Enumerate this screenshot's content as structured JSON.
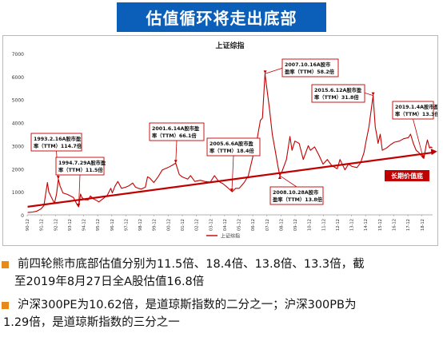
{
  "banner": {
    "title": "估值循环将走出底部"
  },
  "chart_data": {
    "type": "line",
    "title": "上证综指",
    "legend": [
      "上证综指"
    ],
    "legend_position": "bottom",
    "ylim": [
      0,
      7000
    ],
    "yticks": [
      0,
      1000,
      2000,
      3000,
      4000,
      5000,
      6000,
      7000
    ],
    "xlim": [
      1990.917,
      2019.667
    ],
    "x_tick_labels": [
      "90-12",
      "91-12",
      "92-12",
      "93-12",
      "94-12",
      "95-12",
      "96-12",
      "97-12",
      "98-12",
      "99-12",
      "00-12",
      "01-12",
      "02-12",
      "03-12",
      "04-12",
      "05-12",
      "06-12",
      "07-12",
      "08-12",
      "09-12",
      "10-12",
      "11-12",
      "12-12",
      "13-12",
      "14-12",
      "15-12",
      "16-12",
      "17-12",
      "18-12"
    ],
    "series": [
      {
        "name": "上证综指",
        "color": "#c00000",
        "points": [
          [
            1990.95,
            100
          ],
          [
            1991.3,
            120
          ],
          [
            1991.6,
            160
          ],
          [
            1991.9,
            260
          ],
          [
            1992.1,
            400
          ],
          [
            1992.35,
            1400
          ],
          [
            1992.45,
            1000
          ],
          [
            1992.6,
            800
          ],
          [
            1992.85,
            500
          ],
          [
            1993.0,
            900
          ],
          [
            1993.13,
            1550
          ],
          [
            1993.25,
            1250
          ],
          [
            1993.45,
            950
          ],
          [
            1993.7,
            900
          ],
          [
            1993.9,
            850
          ],
          [
            1994.2,
            750
          ],
          [
            1994.45,
            450
          ],
          [
            1994.57,
            350
          ],
          [
            1994.7,
            900
          ],
          [
            1994.8,
            750
          ],
          [
            1995.0,
            650
          ],
          [
            1995.25,
            650
          ],
          [
            1995.4,
            820
          ],
          [
            1995.6,
            700
          ],
          [
            1995.9,
            600
          ],
          [
            1996.0,
            560
          ],
          [
            1996.3,
            700
          ],
          [
            1996.6,
            850
          ],
          [
            1996.85,
            1150
          ],
          [
            1996.95,
            950
          ],
          [
            1997.15,
            1250
          ],
          [
            1997.35,
            1450
          ],
          [
            1997.6,
            1150
          ],
          [
            1997.9,
            1200
          ],
          [
            1998.1,
            1250
          ],
          [
            1998.4,
            1380
          ],
          [
            1998.6,
            1200
          ],
          [
            1998.8,
            1150
          ],
          [
            1999.0,
            1120
          ],
          [
            1999.3,
            1200
          ],
          [
            1999.45,
            1650
          ],
          [
            1999.6,
            1600
          ],
          [
            1999.9,
            1400
          ],
          [
            2000.2,
            1650
          ],
          [
            2000.5,
            1950
          ],
          [
            2000.9,
            2050
          ],
          [
            2001.2,
            2150
          ],
          [
            2001.45,
            2245
          ],
          [
            2001.7,
            1750
          ],
          [
            2001.9,
            1650
          ],
          [
            2002.3,
            1550
          ],
          [
            2002.5,
            1700
          ],
          [
            2002.8,
            1450
          ],
          [
            2003.2,
            1500
          ],
          [
            2003.5,
            1450
          ],
          [
            2003.9,
            1420
          ],
          [
            2004.2,
            1700
          ],
          [
            2004.5,
            1450
          ],
          [
            2004.8,
            1350
          ],
          [
            2005.1,
            1200
          ],
          [
            2005.45,
            1000
          ],
          [
            2005.7,
            1150
          ],
          [
            2005.95,
            1150
          ],
          [
            2006.3,
            1400
          ],
          [
            2006.6,
            1700
          ],
          [
            2006.95,
            2600
          ],
          [
            2007.2,
            3200
          ],
          [
            2007.45,
            4100
          ],
          [
            2007.6,
            4200
          ],
          [
            2007.78,
            6124
          ],
          [
            2007.95,
            5300
          ],
          [
            2008.1,
            4600
          ],
          [
            2008.3,
            3500
          ],
          [
            2008.5,
            2800
          ],
          [
            2008.7,
            2100
          ],
          [
            2008.83,
            1700
          ],
          [
            2009.0,
            1900
          ],
          [
            2009.3,
            2400
          ],
          [
            2009.55,
            3400
          ],
          [
            2009.7,
            2800
          ],
          [
            2009.9,
            3200
          ],
          [
            2010.2,
            3100
          ],
          [
            2010.5,
            2400
          ],
          [
            2010.85,
            3000
          ],
          [
            2011.0,
            2800
          ],
          [
            2011.3,
            2950
          ],
          [
            2011.6,
            2600
          ],
          [
            2011.9,
            2200
          ],
          [
            2012.2,
            2400
          ],
          [
            2012.5,
            2150
          ],
          [
            2012.9,
            2000
          ],
          [
            2013.1,
            2400
          ],
          [
            2013.45,
            1950
          ],
          [
            2013.7,
            2200
          ],
          [
            2013.95,
            2100
          ],
          [
            2014.3,
            2050
          ],
          [
            2014.55,
            2250
          ],
          [
            2014.8,
            2700
          ],
          [
            2014.95,
            3200
          ],
          [
            2015.15,
            3800
          ],
          [
            2015.3,
            4500
          ],
          [
            2015.45,
            5178
          ],
          [
            2015.6,
            3800
          ],
          [
            2015.7,
            3500
          ],
          [
            2015.8,
            3100
          ],
          [
            2015.95,
            3500
          ],
          [
            2016.1,
            2800
          ],
          [
            2016.4,
            2900
          ],
          [
            2016.7,
            3050
          ],
          [
            2016.95,
            3150
          ],
          [
            2017.3,
            3200
          ],
          [
            2017.6,
            3300
          ],
          [
            2017.95,
            3350
          ],
          [
            2018.1,
            3500
          ],
          [
            2018.3,
            3100
          ],
          [
            2018.5,
            2800
          ],
          [
            2018.7,
            2700
          ],
          [
            2018.95,
            2500
          ],
          [
            2019.05,
            2450
          ],
          [
            2019.2,
            3000
          ],
          [
            2019.3,
            3250
          ],
          [
            2019.45,
            2900
          ],
          [
            2019.55,
            2950
          ],
          [
            2019.65,
            2900
          ]
        ]
      }
    ],
    "trendline": {
      "label": "长期价值底",
      "from": [
        1990.95,
        350
      ],
      "to": [
        2019.65,
        2700
      ],
      "color": "#c00000"
    },
    "annotations": [
      {
        "date": "1993.2.16",
        "line1": "1993.2.16A股市盈",
        "line2": "率（TTM）114.7倍",
        "x": 1993.12,
        "y": 1550
      },
      {
        "date": "1994.7.29",
        "line1": "1994.7.29A股市盈",
        "line2": "率（TTM）11.5倍",
        "x": 1994.57,
        "y": 350
      },
      {
        "date": "2001.6.14",
        "line1": "2001.6.14A股市盈",
        "line2": "率（TTM）66.1倍",
        "x": 2001.45,
        "y": 2245
      },
      {
        "date": "2005.6.6",
        "line1": "2005.6.6A股市盈",
        "line2": "率（TTM）18.4倍",
        "x": 2005.43,
        "y": 1000
      },
      {
        "date": "2007.10.16",
        "line1": "2007.10.16A股市",
        "line2": "盈率（TTM）58.2倍",
        "x": 2007.79,
        "y": 6124
      },
      {
        "date": "2008.10.28",
        "line1": "2008.10.28A股市",
        "line2": "盈率（TTM）13.8倍",
        "x": 2008.83,
        "y": 1700
      },
      {
        "date": "2015.6.12",
        "line1": "2015.6.12A股市盈",
        "line2": "率（TTM）31.8倍",
        "x": 2015.45,
        "y": 5178
      },
      {
        "date": "2019.1.4",
        "line1": "2019.1.4A股市盈",
        "line2": "率（TTM）13.3倍",
        "x": 2019.01,
        "y": 2450
      }
    ]
  },
  "bullets": [
    {
      "id": "b1",
      "lines": [
        "前四轮熊市底部估值分别为11.5倍、18.4倍、13.8倍、13.3倍，截",
        "至2019年8月27日全A股估值16.8倍"
      ]
    },
    {
      "id": "b2",
      "lines": [
        "沪深300PE为10.62倍，是道琼斯指数的二分之一；沪深300PB为",
        "1.29倍，是道琼斯指数的三分之一"
      ]
    }
  ]
}
